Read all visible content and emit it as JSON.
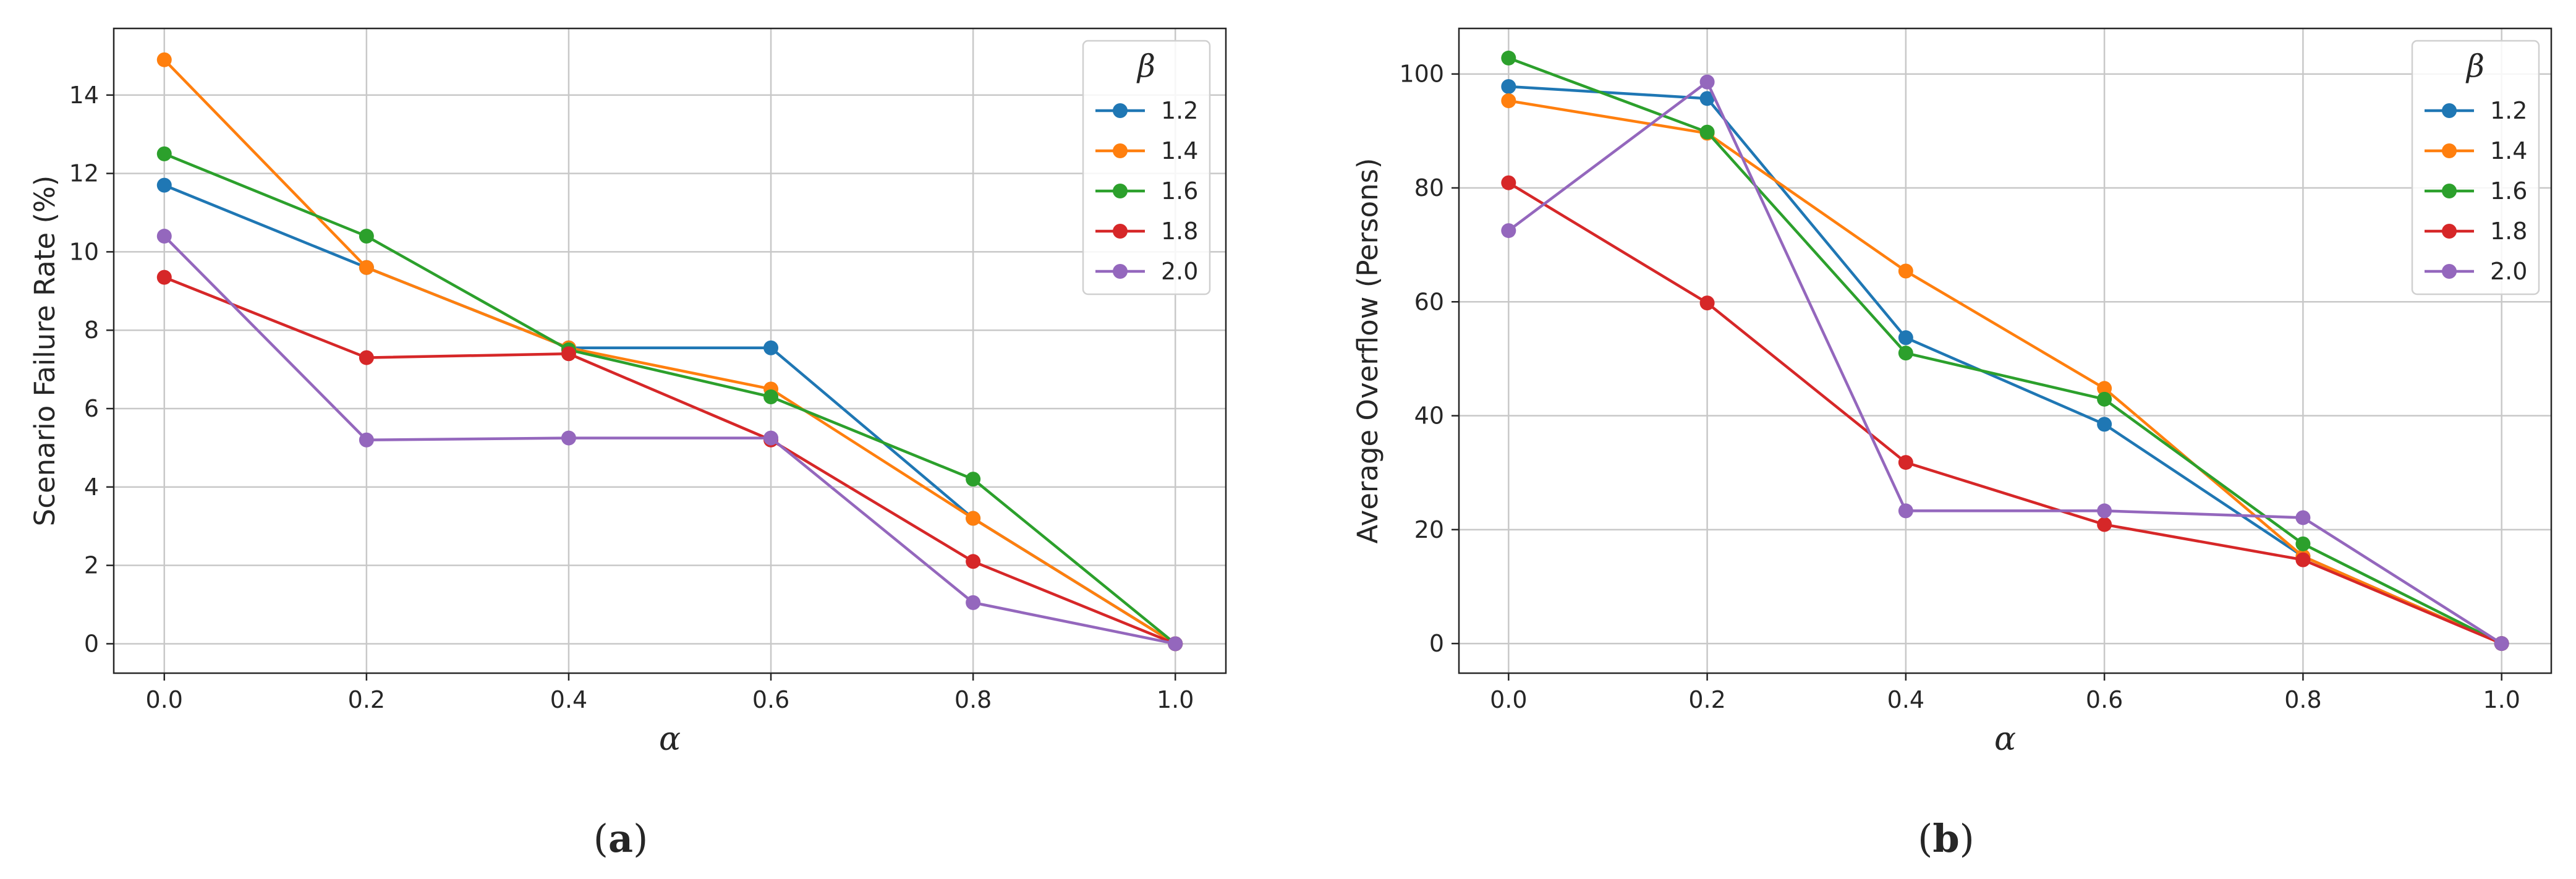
{
  "chart_data": [
    {
      "type": "line",
      "caption": "a",
      "xlabel": "α",
      "ylabel": "Scenario Failure Rate (%)",
      "x": [
        0.0,
        0.2,
        0.4,
        0.6,
        0.8,
        1.0
      ],
      "xticks": [
        "0.0",
        "0.2",
        "0.4",
        "0.6",
        "0.8",
        "1.0"
      ],
      "xlim": [
        -0.05,
        1.05
      ],
      "yticks": [
        "0",
        "2",
        "4",
        "6",
        "8",
        "10",
        "12",
        "14"
      ],
      "ytick_values": [
        0,
        2,
        4,
        6,
        8,
        10,
        12,
        14
      ],
      "ylim": [
        -0.75,
        15.7
      ],
      "grid": true,
      "legend_title": "β",
      "legend_position": "top-right",
      "series": [
        {
          "name": "1.2",
          "color": "#1f77b4",
          "values": [
            11.7,
            9.6,
            7.55,
            7.55,
            3.2,
            0.0
          ]
        },
        {
          "name": "1.4",
          "color": "#ff7f0e",
          "values": [
            14.9,
            9.6,
            7.55,
            6.5,
            3.2,
            0.0
          ]
        },
        {
          "name": "1.6",
          "color": "#2ca02c",
          "values": [
            12.5,
            10.4,
            7.5,
            6.3,
            4.2,
            0.0
          ]
        },
        {
          "name": "1.8",
          "color": "#d62728",
          "values": [
            9.35,
            7.3,
            7.4,
            5.2,
            2.1,
            0.0
          ]
        },
        {
          "name": "2.0",
          "color": "#9467bd",
          "values": [
            10.4,
            5.2,
            5.25,
            5.25,
            1.05,
            0.0
          ]
        }
      ]
    },
    {
      "type": "line",
      "caption": "b",
      "xlabel": "α",
      "ylabel": "Average Overflow (Persons)",
      "x": [
        0.0,
        0.2,
        0.4,
        0.6,
        0.8,
        1.0
      ],
      "xticks": [
        "0.0",
        "0.2",
        "0.4",
        "0.6",
        "0.8",
        "1.0"
      ],
      "xlim": [
        -0.05,
        1.05
      ],
      "yticks": [
        "0",
        "20",
        "40",
        "60",
        "80",
        "100"
      ],
      "ytick_values": [
        0,
        20,
        40,
        60,
        80,
        100
      ],
      "ylim": [
        -5.2,
        108
      ],
      "grid": true,
      "legend_title": "β",
      "legend_position": "top-right",
      "series": [
        {
          "name": "1.2",
          "color": "#1f77b4",
          "values": [
            97.8,
            95.7,
            53.7,
            38.5,
            15.3,
            0.0
          ]
        },
        {
          "name": "1.4",
          "color": "#ff7f0e",
          "values": [
            95.3,
            89.6,
            65.4,
            44.8,
            15.3,
            0.0
          ]
        },
        {
          "name": "1.6",
          "color": "#2ca02c",
          "values": [
            102.8,
            89.8,
            51.0,
            42.9,
            17.5,
            0.0
          ]
        },
        {
          "name": "1.8",
          "color": "#d62728",
          "values": [
            80.9,
            59.8,
            31.8,
            20.9,
            14.7,
            0.0
          ]
        },
        {
          "name": "2.0",
          "color": "#9467bd",
          "values": [
            72.5,
            98.6,
            23.3,
            23.3,
            22.1,
            0.0
          ]
        }
      ]
    }
  ]
}
